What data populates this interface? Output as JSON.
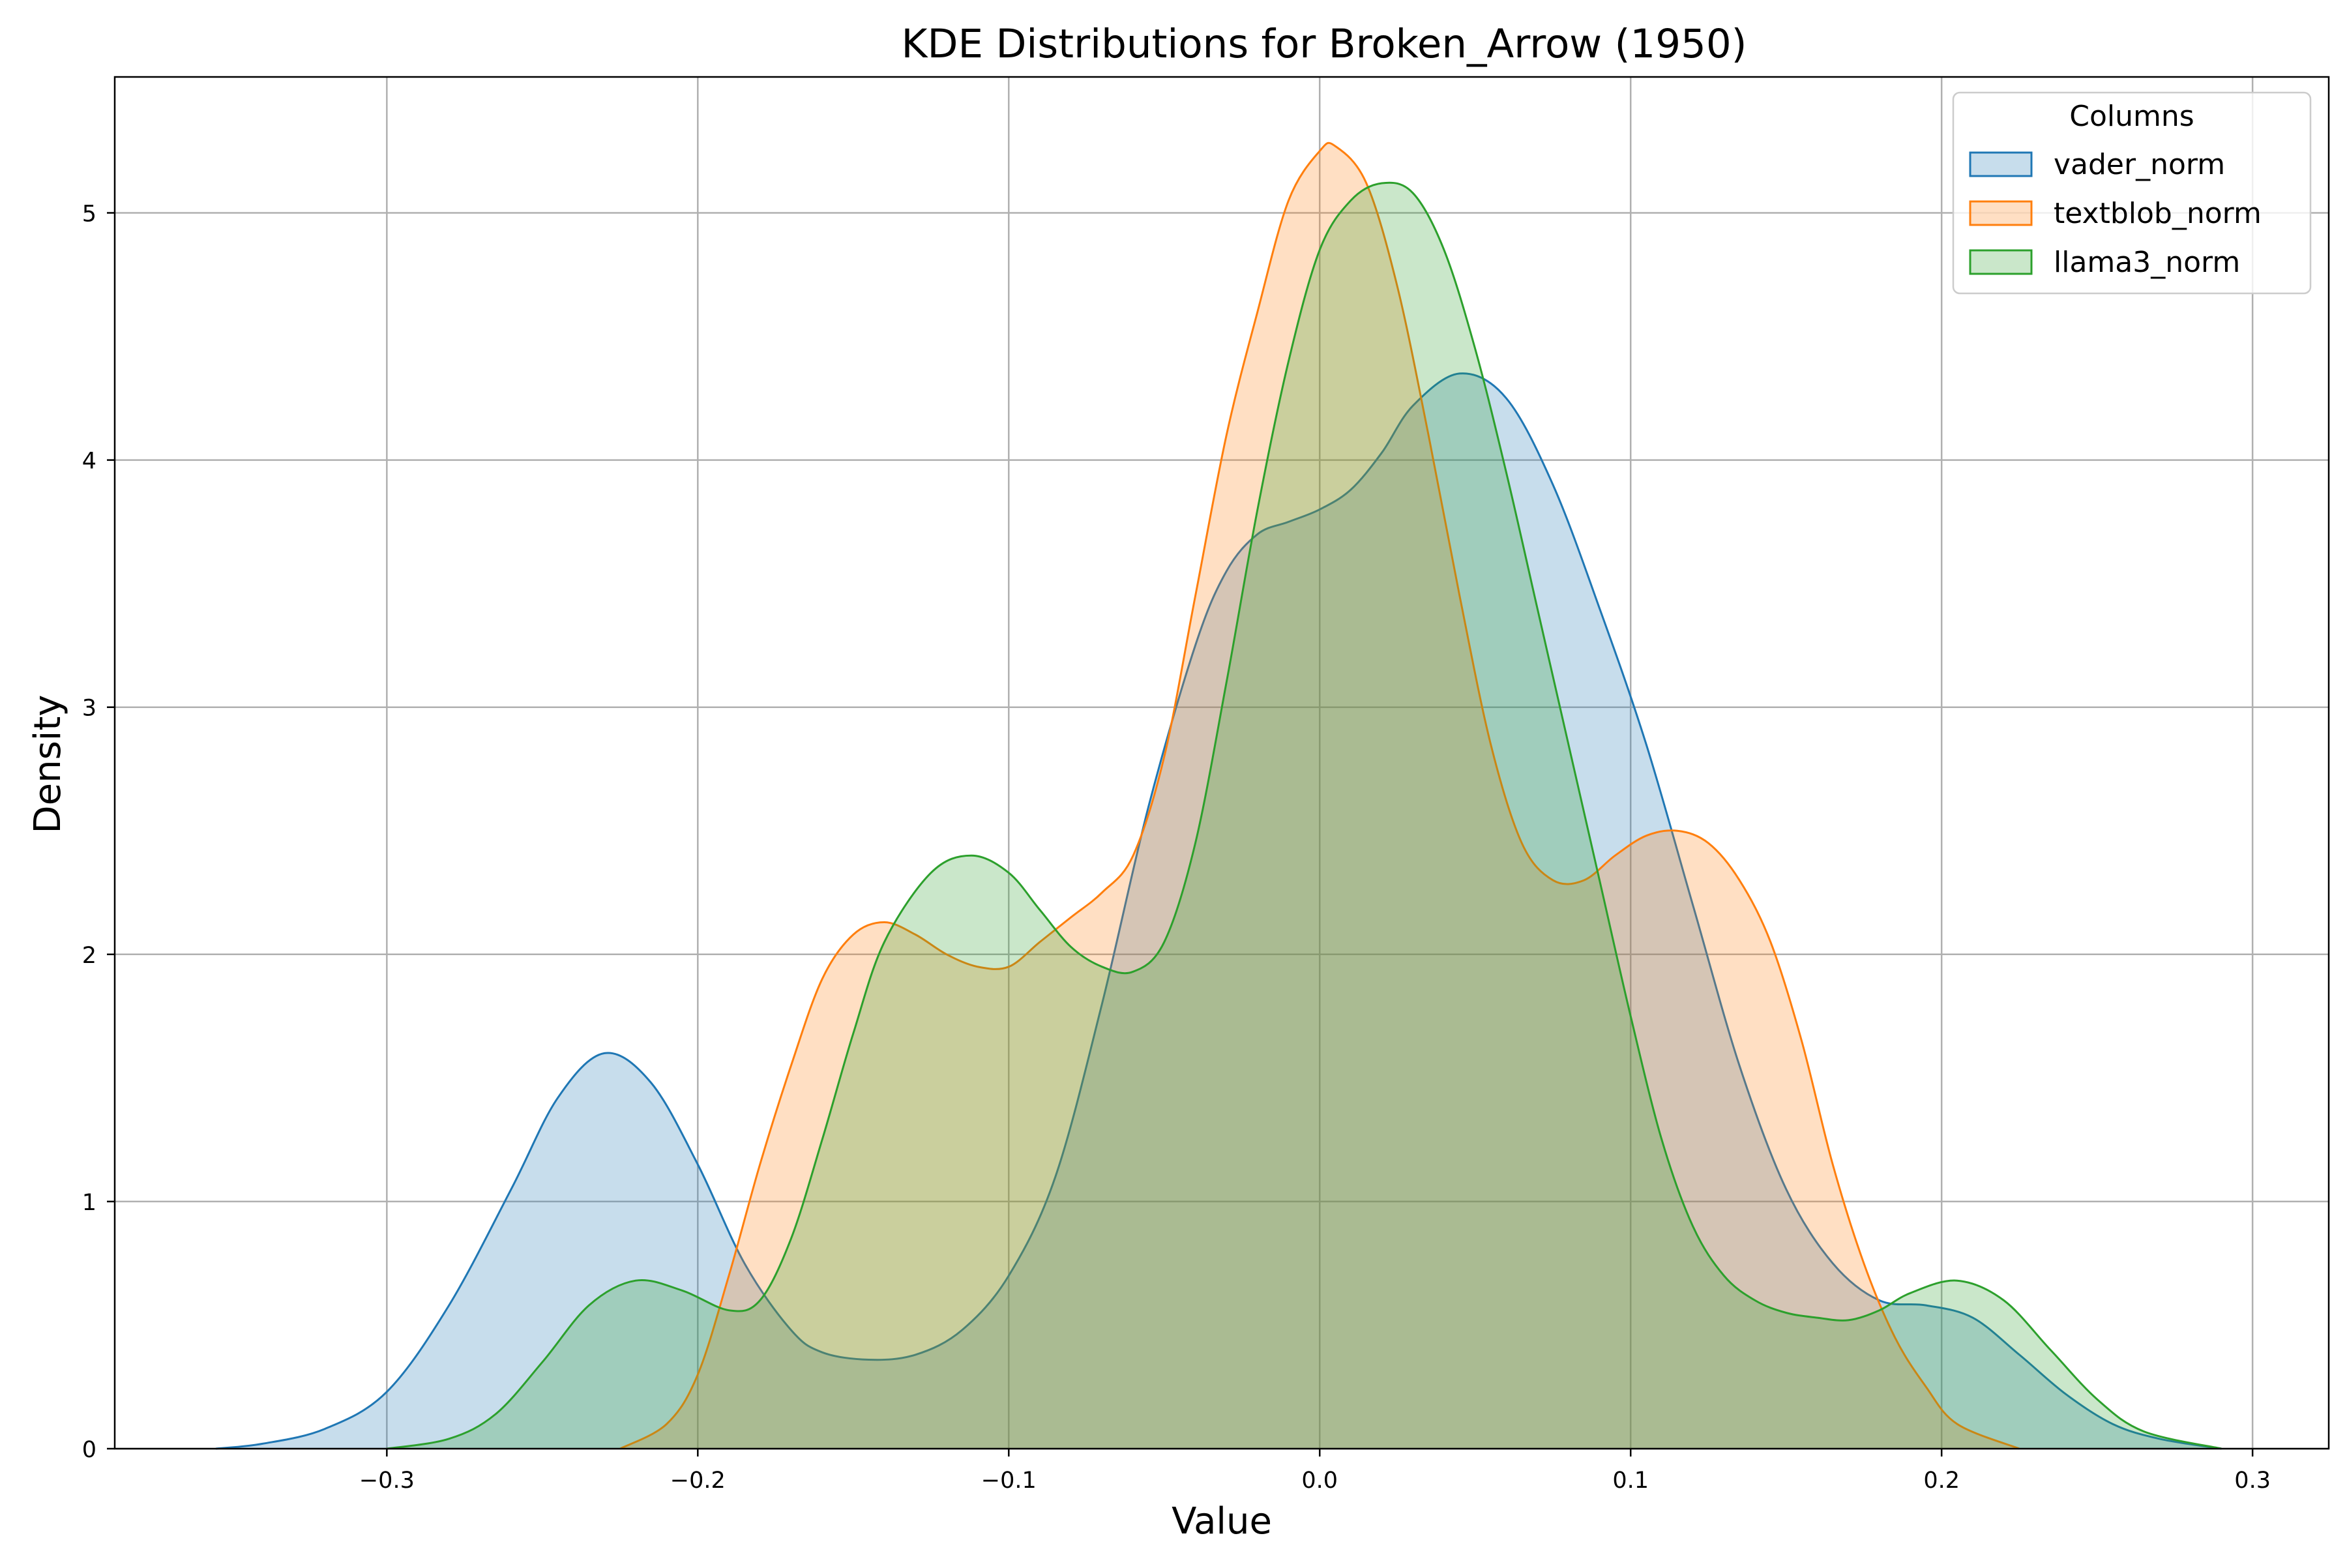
{
  "chart_data": {
    "type": "area",
    "title": "KDE Distributions for Broken_Arrow (1950)",
    "xlabel": "Value",
    "ylabel": "Density",
    "xlim": [
      -0.3875,
      0.3245
    ],
    "ylim": [
      0,
      5.55
    ],
    "xticks": [
      -0.3,
      -0.2,
      -0.1,
      0.0,
      0.1,
      0.2,
      0.3
    ],
    "xtick_labels": [
      "−0.3",
      "−0.2",
      "−0.1",
      "0.0",
      "0.1",
      "0.2",
      "0.3"
    ],
    "yticks": [
      0,
      1,
      2,
      3,
      4,
      5
    ],
    "ytick_labels": [
      "0",
      "1",
      "2",
      "3",
      "4",
      "5"
    ],
    "grid": true,
    "legend": {
      "title": "Columns",
      "placement": "top-right"
    },
    "series": [
      {
        "name": "vader_norm",
        "color": "#1f77b4",
        "points": [
          [
            -0.355,
            0.0
          ],
          [
            -0.34,
            0.02
          ],
          [
            -0.32,
            0.08
          ],
          [
            -0.3,
            0.23
          ],
          [
            -0.28,
            0.58
          ],
          [
            -0.26,
            1.05
          ],
          [
            -0.245,
            1.42
          ],
          [
            -0.23,
            1.6
          ],
          [
            -0.215,
            1.48
          ],
          [
            -0.2,
            1.15
          ],
          [
            -0.185,
            0.75
          ],
          [
            -0.17,
            0.48
          ],
          [
            -0.16,
            0.39
          ],
          [
            -0.145,
            0.36
          ],
          [
            -0.13,
            0.38
          ],
          [
            -0.115,
            0.48
          ],
          [
            -0.1,
            0.7
          ],
          [
            -0.085,
            1.1
          ],
          [
            -0.07,
            1.8
          ],
          [
            -0.055,
            2.6
          ],
          [
            -0.04,
            3.25
          ],
          [
            -0.03,
            3.55
          ],
          [
            -0.02,
            3.7
          ],
          [
            -0.01,
            3.75
          ],
          [
            0.0,
            3.8
          ],
          [
            0.01,
            3.88
          ],
          [
            0.02,
            4.03
          ],
          [
            0.03,
            4.22
          ],
          [
            0.045,
            4.35
          ],
          [
            0.06,
            4.25
          ],
          [
            0.075,
            3.9
          ],
          [
            0.09,
            3.4
          ],
          [
            0.105,
            2.85
          ],
          [
            0.12,
            2.2
          ],
          [
            0.135,
            1.55
          ],
          [
            0.15,
            1.05
          ],
          [
            0.165,
            0.75
          ],
          [
            0.18,
            0.6
          ],
          [
            0.195,
            0.58
          ],
          [
            0.21,
            0.53
          ],
          [
            0.225,
            0.38
          ],
          [
            0.24,
            0.22
          ],
          [
            0.255,
            0.1
          ],
          [
            0.27,
            0.04
          ],
          [
            0.29,
            0.0
          ]
        ]
      },
      {
        "name": "textblob_norm",
        "color": "#ff7f0e",
        "points": [
          [
            -0.225,
            0.0
          ],
          [
            -0.21,
            0.1
          ],
          [
            -0.2,
            0.3
          ],
          [
            -0.19,
            0.7
          ],
          [
            -0.18,
            1.15
          ],
          [
            -0.17,
            1.55
          ],
          [
            -0.16,
            1.9
          ],
          [
            -0.15,
            2.08
          ],
          [
            -0.14,
            2.13
          ],
          [
            -0.13,
            2.08
          ],
          [
            -0.12,
            2.0
          ],
          [
            -0.11,
            1.95
          ],
          [
            -0.1,
            1.95
          ],
          [
            -0.09,
            2.05
          ],
          [
            -0.08,
            2.15
          ],
          [
            -0.07,
            2.25
          ],
          [
            -0.06,
            2.4
          ],
          [
            -0.05,
            2.8
          ],
          [
            -0.04,
            3.45
          ],
          [
            -0.03,
            4.1
          ],
          [
            -0.02,
            4.6
          ],
          [
            -0.01,
            5.05
          ],
          [
            0.0,
            5.25
          ],
          [
            0.005,
            5.27
          ],
          [
            0.015,
            5.12
          ],
          [
            0.025,
            4.7
          ],
          [
            0.035,
            4.1
          ],
          [
            0.045,
            3.45
          ],
          [
            0.055,
            2.85
          ],
          [
            0.065,
            2.45
          ],
          [
            0.075,
            2.3
          ],
          [
            0.085,
            2.3
          ],
          [
            0.095,
            2.4
          ],
          [
            0.105,
            2.48
          ],
          [
            0.115,
            2.5
          ],
          [
            0.125,
            2.45
          ],
          [
            0.135,
            2.3
          ],
          [
            0.145,
            2.05
          ],
          [
            0.155,
            1.65
          ],
          [
            0.165,
            1.15
          ],
          [
            0.175,
            0.75
          ],
          [
            0.185,
            0.45
          ],
          [
            0.195,
            0.25
          ],
          [
            0.205,
            0.1
          ],
          [
            0.225,
            0.0
          ]
        ]
      },
      {
        "name": "llama3_norm",
        "color": "#2ca02c",
        "points": [
          [
            -0.3,
            0.0
          ],
          [
            -0.28,
            0.04
          ],
          [
            -0.265,
            0.14
          ],
          [
            -0.25,
            0.35
          ],
          [
            -0.235,
            0.58
          ],
          [
            -0.22,
            0.68
          ],
          [
            -0.205,
            0.64
          ],
          [
            -0.19,
            0.56
          ],
          [
            -0.18,
            0.6
          ],
          [
            -0.17,
            0.85
          ],
          [
            -0.16,
            1.25
          ],
          [
            -0.15,
            1.68
          ],
          [
            -0.14,
            2.05
          ],
          [
            -0.125,
            2.33
          ],
          [
            -0.112,
            2.4
          ],
          [
            -0.1,
            2.33
          ],
          [
            -0.09,
            2.18
          ],
          [
            -0.08,
            2.03
          ],
          [
            -0.07,
            1.95
          ],
          [
            -0.06,
            1.93
          ],
          [
            -0.05,
            2.05
          ],
          [
            -0.04,
            2.45
          ],
          [
            -0.03,
            3.1
          ],
          [
            -0.02,
            3.8
          ],
          [
            -0.01,
            4.4
          ],
          [
            0.0,
            4.85
          ],
          [
            0.01,
            5.05
          ],
          [
            0.02,
            5.12
          ],
          [
            0.03,
            5.08
          ],
          [
            0.04,
            4.85
          ],
          [
            0.05,
            4.45
          ],
          [
            0.06,
            3.95
          ],
          [
            0.07,
            3.4
          ],
          [
            0.08,
            2.85
          ],
          [
            0.09,
            2.3
          ],
          [
            0.1,
            1.75
          ],
          [
            0.11,
            1.25
          ],
          [
            0.12,
            0.9
          ],
          [
            0.13,
            0.7
          ],
          [
            0.14,
            0.6
          ],
          [
            0.15,
            0.55
          ],
          [
            0.16,
            0.53
          ],
          [
            0.17,
            0.52
          ],
          [
            0.18,
            0.56
          ],
          [
            0.19,
            0.63
          ],
          [
            0.205,
            0.68
          ],
          [
            0.22,
            0.6
          ],
          [
            0.235,
            0.4
          ],
          [
            0.25,
            0.2
          ],
          [
            0.265,
            0.07
          ],
          [
            0.29,
            0.0
          ]
        ]
      }
    ]
  }
}
